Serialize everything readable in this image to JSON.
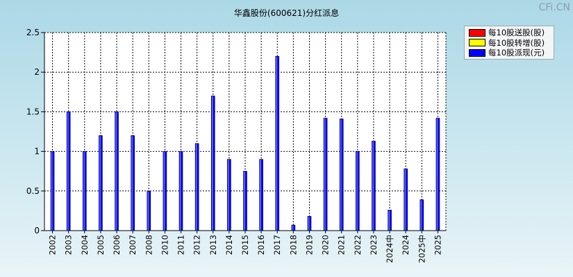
{
  "title": "华鑫股份(600621)分红派息",
  "brand": "CFi.CN",
  "chart_data": {
    "type": "bar",
    "title": "华鑫股份(600621)分红派息",
    "categories": [
      "2002",
      "2003",
      "2004",
      "2005",
      "2006",
      "2007",
      "2008",
      "2010",
      "2011",
      "2012",
      "2013",
      "2014",
      "2015",
      "2016",
      "2017",
      "2018",
      "2019",
      "2020",
      "2021",
      "2022",
      "2023",
      "2024中",
      "2024",
      "2025中",
      "2025"
    ],
    "series": [
      {
        "name": "每10股送股(股)",
        "color": "#ff0000",
        "values": [
          0,
          0,
          0,
          0,
          0,
          0,
          0,
          0,
          0,
          0,
          0,
          0,
          0,
          0,
          0,
          0,
          0,
          0,
          0,
          0,
          0,
          0,
          0,
          0,
          0
        ]
      },
      {
        "name": "每10股转增(股)",
        "color": "#ffff00",
        "values": [
          0,
          0,
          0,
          0,
          0,
          0,
          0,
          0,
          0,
          0,
          0,
          0,
          0,
          0,
          0,
          0,
          0,
          0,
          0,
          0,
          0,
          0,
          0,
          0,
          0
        ]
      },
      {
        "name": "每10股派现(元)",
        "color": "#0000ff",
        "values": [
          1,
          1.5,
          1,
          1.2,
          1.5,
          1.2,
          0.5,
          1,
          1,
          1.1,
          1.7,
          0.9,
          0.75,
          0.9,
          2.2,
          0.07,
          0.18,
          1.42,
          1.41,
          1,
          1.13,
          0.26,
          0.78,
          0.39,
          1.42
        ]
      }
    ],
    "ylim": [
      0,
      2.5
    ],
    "yticks": [
      "0",
      "0.5",
      "1",
      "1.5",
      "2",
      "2.5"
    ],
    "grid": true,
    "legend_position": "top-right"
  }
}
